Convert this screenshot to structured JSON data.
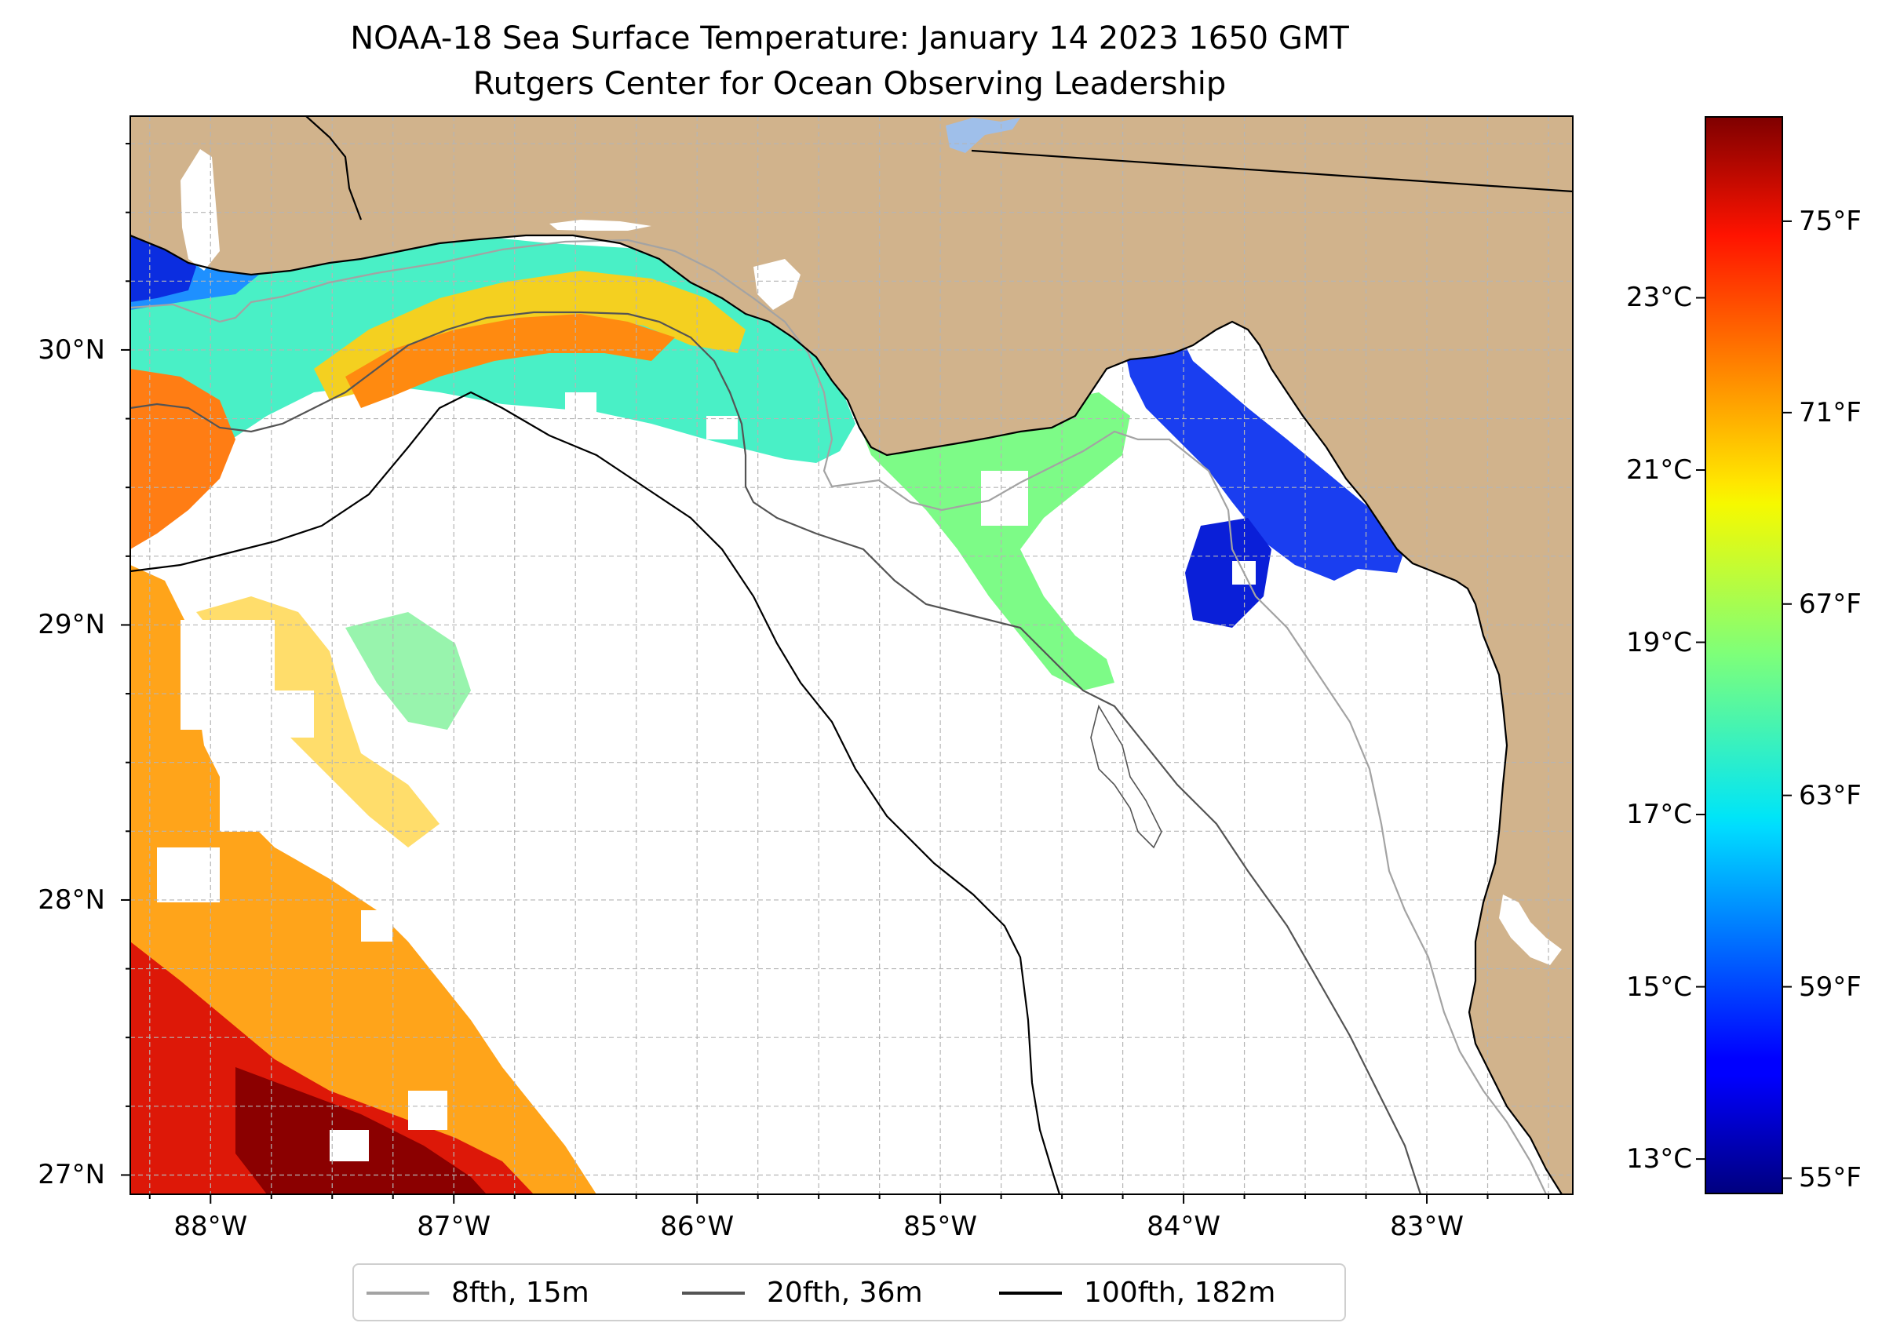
{
  "header": {
    "title_line1": "NOAA-18 Sea Surface Temperature: January 14 2023 1650 GMT",
    "title_line2": "Rutgers Center for Ocean Observing Leadership"
  },
  "map": {
    "land_color": "#d1b38c",
    "lake_color": "#9fbfea",
    "grid_color": "#b5b5b5",
    "lat_range": [
      26.93,
      30.85
    ],
    "lon_range": [
      -88.33,
      -82.4
    ],
    "lat_ticks": [
      {
        "value": 30,
        "label": "30°N"
      },
      {
        "value": 29,
        "label": "29°N"
      },
      {
        "value": 28,
        "label": "28°N"
      },
      {
        "value": 27,
        "label": "27°N"
      }
    ],
    "lon_ticks": [
      {
        "value": -88,
        "label": "88°W"
      },
      {
        "value": -87,
        "label": "87°W"
      },
      {
        "value": -86,
        "label": "86°W"
      },
      {
        "value": -85,
        "label": "85°W"
      },
      {
        "value": -84,
        "label": "84°W"
      },
      {
        "value": -83,
        "label": "83°W"
      }
    ]
  },
  "colorbar": {
    "celsius_ticks": [
      {
        "value": 23,
        "label": "23°C"
      },
      {
        "value": 21,
        "label": "21°C"
      },
      {
        "value": 19,
        "label": "19°C"
      },
      {
        "value": 17,
        "label": "17°C"
      },
      {
        "value": 15,
        "label": "15°C"
      },
      {
        "value": 13,
        "label": "13°C"
      }
    ],
    "fahrenheit_ticks": [
      {
        "value": 75,
        "label": "75°F"
      },
      {
        "value": 71,
        "label": "71°F"
      },
      {
        "value": 67,
        "label": "67°F"
      },
      {
        "value": 63,
        "label": "63°F"
      },
      {
        "value": 59,
        "label": "59°F"
      },
      {
        "value": 55,
        "label": "55°F"
      }
    ],
    "range_celsius": [
      12.6,
      25.1
    ],
    "colormap": "jet"
  },
  "legend": {
    "items": [
      {
        "label": "8fth, 15m",
        "color": "#a3a3a3"
      },
      {
        "label": "20fth, 36m",
        "color": "#545454"
      },
      {
        "label": "100fth, 182m",
        "color": "#000000"
      }
    ]
  }
}
